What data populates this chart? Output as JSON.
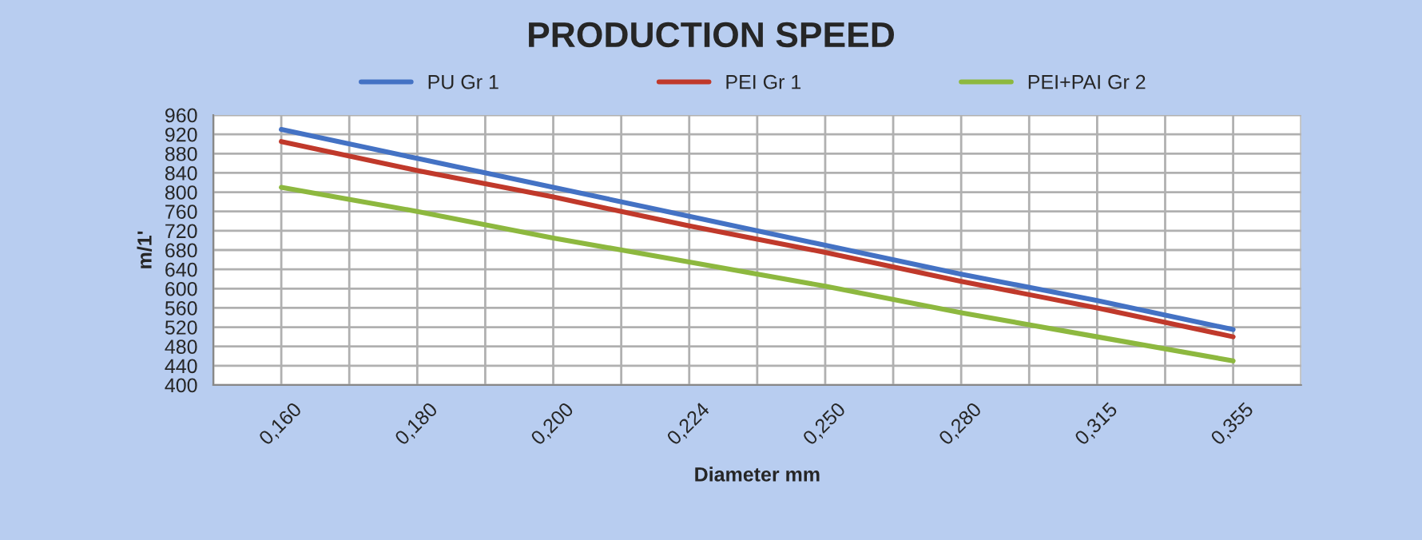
{
  "chart_data": {
    "type": "line",
    "title": "PRODUCTION SPEED",
    "xlabel": "Diameter mm",
    "ylabel": "m/1'",
    "categories": [
      "0,160",
      "0,180",
      "0,200",
      "0,224",
      "0,250",
      "0,280",
      "0,315",
      "0,355"
    ],
    "series": [
      {
        "name": "PU Gr 1",
        "color": "#4472c4",
        "values": [
          930,
          870,
          810,
          750,
          690,
          630,
          575,
          515
        ]
      },
      {
        "name": "PEI Gr 1",
        "color": "#c0392b",
        "values": [
          905,
          845,
          790,
          730,
          675,
          615,
          560,
          500
        ]
      },
      {
        "name": "PEI+PAI Gr 2",
        "color": "#8db83f",
        "values": [
          810,
          760,
          705,
          655,
          605,
          550,
          500,
          450
        ]
      }
    ],
    "ylim": [
      400,
      960
    ],
    "yticks": [
      400,
      440,
      480,
      520,
      560,
      600,
      640,
      680,
      720,
      760,
      800,
      840,
      880,
      920,
      960
    ],
    "grid": true,
    "legend": "top",
    "marker": "none",
    "line_style": "solid"
  }
}
